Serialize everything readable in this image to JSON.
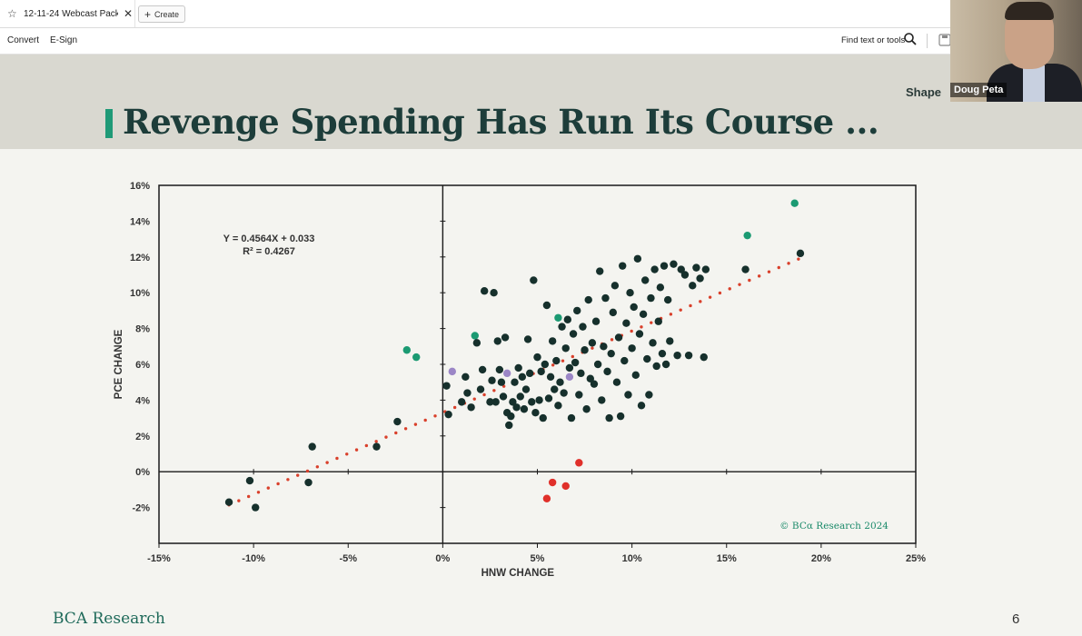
{
  "tab": {
    "title": "12-11-24 Webcast Pack.p...",
    "star_icon": "star-icon",
    "close_icon": "close-icon"
  },
  "create_button": {
    "label": "Create",
    "icon": "plus-icon"
  },
  "toolbar": {
    "convert": "Convert",
    "esign": "E-Sign",
    "find": "Find text or tools",
    "search_icon": "search-icon",
    "save_icon": "save-icon"
  },
  "slide": {
    "title": "Revenge Spending Has Run Its Course ...",
    "partial_text": "Shape",
    "footer_logo": "BCA Research",
    "page_number": "6",
    "accent_color": "#1f9a77"
  },
  "video": {
    "participant": "Doug Peta"
  },
  "chart_data": {
    "type": "scatter",
    "xlabel": "HNW CHANGE",
    "ylabel": "PCE CHANGE",
    "xlim": [
      -15,
      25
    ],
    "ylim": [
      -4,
      16
    ],
    "x_ticks": [
      "-15%",
      "-10%",
      "-5%",
      "0%",
      "5%",
      "10%",
      "15%",
      "20%",
      "25%"
    ],
    "y_ticks": [
      "-2%",
      "0%",
      "2%",
      "4%",
      "6%",
      "8%",
      "10%",
      "12%",
      "14%",
      "16%"
    ],
    "equation": "Y = 0.4564X + 0.033",
    "r_squared": "R² = 0.4267",
    "credit": "© BCα Research 2024",
    "trendline": {
      "slope": 0.4564,
      "intercept": 3.3,
      "x_range": [
        -11.3,
        18.8
      ],
      "color": "#d9402b"
    },
    "colors": {
      "main": "#16302c",
      "green": "#1b9a72",
      "purple": "#9b86c6",
      "red": "#e0302a"
    },
    "series": [
      {
        "color_key": "green",
        "points": [
          [
            -1.9,
            6.8
          ],
          [
            -1.4,
            6.4
          ],
          [
            1.7,
            7.6
          ],
          [
            6.1,
            8.6
          ],
          [
            16.1,
            13.2
          ],
          [
            18.6,
            15.0
          ]
        ]
      },
      {
        "color_key": "purple",
        "points": [
          [
            0.5,
            5.6
          ],
          [
            3.4,
            5.5
          ],
          [
            6.7,
            5.3
          ]
        ]
      },
      {
        "color_key": "red",
        "points": [
          [
            5.5,
            -1.5
          ],
          [
            5.8,
            -0.6
          ],
          [
            6.5,
            -0.8
          ],
          [
            7.2,
            0.5
          ]
        ]
      },
      {
        "color_key": "main",
        "points": [
          [
            -11.3,
            -1.7
          ],
          [
            -10.2,
            -0.5
          ],
          [
            -9.9,
            -2.0
          ],
          [
            -7.1,
            -0.6
          ],
          [
            -6.9,
            1.4
          ],
          [
            -3.5,
            1.4
          ],
          [
            -2.4,
            2.8
          ],
          [
            0.2,
            4.8
          ],
          [
            0.3,
            3.2
          ],
          [
            1.0,
            3.9
          ],
          [
            1.2,
            5.3
          ],
          [
            1.3,
            4.4
          ],
          [
            1.5,
            3.6
          ],
          [
            1.8,
            7.2
          ],
          [
            2.0,
            4.6
          ],
          [
            2.1,
            5.7
          ],
          [
            2.2,
            10.1
          ],
          [
            2.5,
            3.9
          ],
          [
            2.6,
            5.1
          ],
          [
            2.7,
            10.0
          ],
          [
            2.8,
            3.9
          ],
          [
            2.9,
            7.3
          ],
          [
            3.0,
            5.7
          ],
          [
            3.1,
            5.0
          ],
          [
            3.2,
            4.2
          ],
          [
            3.3,
            7.5
          ],
          [
            3.4,
            3.3
          ],
          [
            3.5,
            2.6
          ],
          [
            3.6,
            3.1
          ],
          [
            3.7,
            3.9
          ],
          [
            3.8,
            5.0
          ],
          [
            3.9,
            3.6
          ],
          [
            4.0,
            5.8
          ],
          [
            4.1,
            4.2
          ],
          [
            4.2,
            5.3
          ],
          [
            4.3,
            3.5
          ],
          [
            4.4,
            4.6
          ],
          [
            4.5,
            7.4
          ],
          [
            4.6,
            5.5
          ],
          [
            4.7,
            3.9
          ],
          [
            4.8,
            10.7
          ],
          [
            4.9,
            3.3
          ],
          [
            5.0,
            6.4
          ],
          [
            5.1,
            4.0
          ],
          [
            5.2,
            5.6
          ],
          [
            5.3,
            3.0
          ],
          [
            5.4,
            6.0
          ],
          [
            5.5,
            9.3
          ],
          [
            5.6,
            4.1
          ],
          [
            5.7,
            5.3
          ],
          [
            5.8,
            7.3
          ],
          [
            5.9,
            4.6
          ],
          [
            6.0,
            6.2
          ],
          [
            6.1,
            3.7
          ],
          [
            6.2,
            5.0
          ],
          [
            6.3,
            8.1
          ],
          [
            6.4,
            4.4
          ],
          [
            6.5,
            6.9
          ],
          [
            6.6,
            8.5
          ],
          [
            6.7,
            5.8
          ],
          [
            6.8,
            3.0
          ],
          [
            6.9,
            7.7
          ],
          [
            7.0,
            6.1
          ],
          [
            7.1,
            9.0
          ],
          [
            7.2,
            4.3
          ],
          [
            7.3,
            5.5
          ],
          [
            7.4,
            8.1
          ],
          [
            7.5,
            6.8
          ],
          [
            7.6,
            3.5
          ],
          [
            7.7,
            9.6
          ],
          [
            7.8,
            5.2
          ],
          [
            7.9,
            7.2
          ],
          [
            8.0,
            4.9
          ],
          [
            8.1,
            8.4
          ],
          [
            8.2,
            6.0
          ],
          [
            8.3,
            11.2
          ],
          [
            8.4,
            4.0
          ],
          [
            8.5,
            7.0
          ],
          [
            8.6,
            9.7
          ],
          [
            8.7,
            5.6
          ],
          [
            8.8,
            3.0
          ],
          [
            8.9,
            6.6
          ],
          [
            9.0,
            8.9
          ],
          [
            9.1,
            10.4
          ],
          [
            9.2,
            5.0
          ],
          [
            9.3,
            7.5
          ],
          [
            9.4,
            3.1
          ],
          [
            9.5,
            11.5
          ],
          [
            9.6,
            6.2
          ],
          [
            9.7,
            8.3
          ],
          [
            9.8,
            4.3
          ],
          [
            9.9,
            10.0
          ],
          [
            10.0,
            6.9
          ],
          [
            10.1,
            9.2
          ],
          [
            10.2,
            5.4
          ],
          [
            10.3,
            11.9
          ],
          [
            10.4,
            7.7
          ],
          [
            10.5,
            3.7
          ],
          [
            10.6,
            8.8
          ],
          [
            10.7,
            10.7
          ],
          [
            10.8,
            6.3
          ],
          [
            10.9,
            4.3
          ],
          [
            11.0,
            9.7
          ],
          [
            11.1,
            7.2
          ],
          [
            11.2,
            11.3
          ],
          [
            11.3,
            5.9
          ],
          [
            11.4,
            8.4
          ],
          [
            11.5,
            10.3
          ],
          [
            11.6,
            6.6
          ],
          [
            11.7,
            11.5
          ],
          [
            11.8,
            6.0
          ],
          [
            11.9,
            9.6
          ],
          [
            12.0,
            7.3
          ],
          [
            12.2,
            11.6
          ],
          [
            12.4,
            6.5
          ],
          [
            12.6,
            11.3
          ],
          [
            12.8,
            11.0
          ],
          [
            13.0,
            6.5
          ],
          [
            13.2,
            10.4
          ],
          [
            13.4,
            11.4
          ],
          [
            13.6,
            10.8
          ],
          [
            13.8,
            6.4
          ],
          [
            13.9,
            11.3
          ],
          [
            16.0,
            11.3
          ],
          [
            18.9,
            12.2
          ]
        ]
      }
    ]
  }
}
